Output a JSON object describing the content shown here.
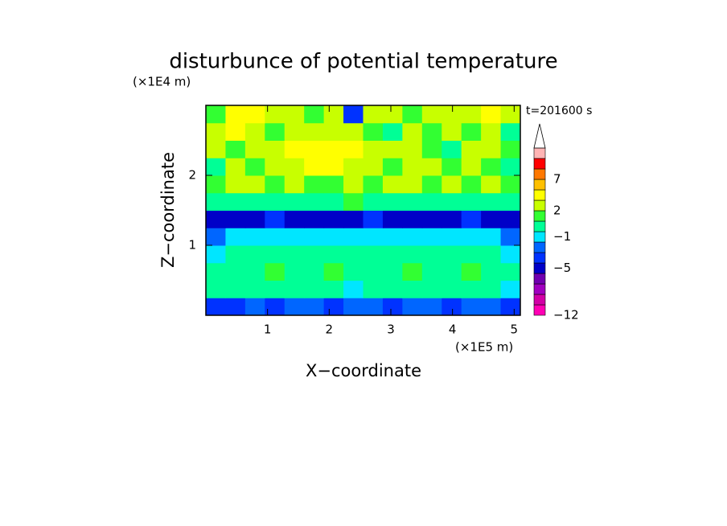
{
  "chart_data": {
    "type": "contour",
    "title": "disturbunce of potential temperature",
    "x_label": "X−coordinate",
    "y_label": "Z−coordinate",
    "x_unit": "(×1E5 m)",
    "y_unit": "(×1E4 m)",
    "annotation": "t=201600 s",
    "xlim": [
      0,
      5.1
    ],
    "ylim": [
      0,
      3
    ],
    "xticks": [
      1,
      2,
      3,
      4,
      5
    ],
    "yticks": [
      1,
      2
    ],
    "z": [
      [
        -4,
        -4,
        -3,
        -4,
        -3,
        -3,
        -4,
        -3,
        -3,
        -4,
        -3,
        -3,
        -4,
        -3,
        -3,
        -4
      ],
      [
        0,
        0.5,
        0.5,
        0,
        0,
        0.5,
        0.5,
        -1.5,
        0.5,
        0.5,
        0,
        0.5,
        0.5,
        0,
        0.5,
        -1.5
      ],
      [
        0.5,
        0.5,
        0.5,
        1.5,
        0.5,
        0.5,
        1.5,
        0.5,
        0.5,
        0.5,
        1.5,
        0.5,
        0.5,
        1.5,
        0.5,
        0.5
      ],
      [
        -1.5,
        0.5,
        0.5,
        0.5,
        0.5,
        0.5,
        0.5,
        0.5,
        0.5,
        0.5,
        0.5,
        0.5,
        0.5,
        0.5,
        0.5,
        -1.5
      ],
      [
        -3,
        -1.5,
        -1.5,
        -1.5,
        -1.5,
        -1.5,
        -1.5,
        -1.5,
        -1.5,
        -1.5,
        -1.5,
        -1.5,
        -1.5,
        -1.5,
        -1.5,
        -3
      ],
      [
        -5,
        -5,
        -5,
        -3.5,
        -5,
        -5,
        -5,
        -5,
        -3.5,
        -5,
        -5,
        -5,
        -5,
        -3.5,
        -5,
        -5
      ],
      [
        0.5,
        0.5,
        0.5,
        0.5,
        0.5,
        0.5,
        0.5,
        1.5,
        0.5,
        0.5,
        0.5,
        0.5,
        0.5,
        0.5,
        0.5,
        0.5
      ],
      [
        1.5,
        2.5,
        2.5,
        1.5,
        2.5,
        1.5,
        1.5,
        2.5,
        1.5,
        2.5,
        2.5,
        1.5,
        2.5,
        1.5,
        2.5,
        1.5
      ],
      [
        0.5,
        2.5,
        1.5,
        2.5,
        2.5,
        4,
        4,
        2.5,
        2.5,
        1.5,
        2.5,
        2.5,
        1.5,
        2.5,
        1.5,
        0.5
      ],
      [
        2.5,
        1.5,
        2.5,
        2.5,
        4,
        4,
        4,
        4,
        2.5,
        2.5,
        2.5,
        1.5,
        0.5,
        2.5,
        2.5,
        1.5
      ],
      [
        2.5,
        4,
        2.5,
        1.5,
        2.5,
        2.5,
        2.5,
        2.5,
        1.5,
        0.5,
        2.5,
        1.5,
        2.5,
        1.5,
        2.5,
        0.5
      ],
      [
        1.5,
        4,
        4,
        2.5,
        2.5,
        1.5,
        2.5,
        -3.5,
        2.5,
        2.5,
        1.5,
        2.5,
        2.5,
        2.5,
        4,
        2.5
      ]
    ],
    "colorbar": {
      "levels": [
        -12,
        -10,
        -8,
        -7,
        -6,
        -4,
        -3,
        -2,
        0,
        1,
        2,
        3,
        5,
        7,
        9,
        11
      ],
      "colors": [
        "#ff00b4",
        "#d200a6",
        "#a000c0",
        "#7000b0",
        "#0000c8",
        "#0032ff",
        "#0066ff",
        "#00e6ff",
        "#00ff96",
        "#32ff32",
        "#c8ff00",
        "#ffff00",
        "#ffc000",
        "#ff7800",
        "#ff0000"
      ],
      "extend_color": "#ffb4b4",
      "ticks": [
        {
          "value": -12,
          "label": "−12"
        },
        {
          "value": -5,
          "label": "−5"
        },
        {
          "value": -1,
          "label": "−1"
        },
        2,
        7
      ]
    }
  }
}
